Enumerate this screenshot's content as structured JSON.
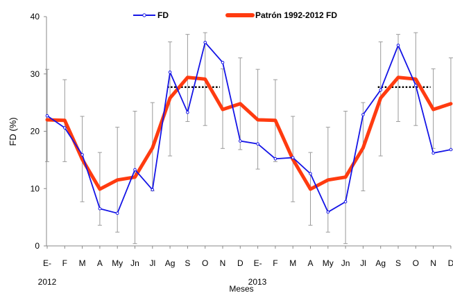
{
  "chart_data": {
    "type": "line",
    "title": "",
    "ylabel": "FD (%)",
    "xlabel": "Meses",
    "ylim": [
      0,
      40
    ],
    "yticks": [
      0,
      10,
      20,
      30,
      40
    ],
    "categories": [
      "E-",
      "F",
      "M",
      "A",
      "My",
      "Jn",
      "Jl",
      "Ag",
      "S",
      "O",
      "N",
      "D",
      "E-",
      "F",
      "M",
      "A",
      "My",
      "Jn",
      "Jl",
      "Ag",
      "S",
      "O",
      "N",
      "D"
    ],
    "year_labels": [
      "2012",
      "2013"
    ],
    "legend_placement": "top",
    "grid": false,
    "series": [
      {
        "name": "FD",
        "color": "#1414e6",
        "values": [
          22.7,
          20.6,
          15.9,
          6.5,
          5.7,
          13.3,
          9.8,
          30.3,
          23.3,
          35.5,
          32.0,
          18.3,
          17.8,
          15.2,
          15.4,
          12.6,
          5.9,
          7.7,
          22.9,
          27.2,
          35.0,
          28.0,
          16.2,
          16.8
        ]
      },
      {
        "name": "Patrón 1992-2012 FD",
        "color": "#ff3b10",
        "values": [
          22.0,
          21.9,
          15.1,
          9.9,
          11.5,
          12.0,
          17.1,
          25.8,
          29.4,
          29.1,
          23.8,
          24.8,
          22.0,
          21.9,
          15.1,
          9.9,
          11.5,
          12.0,
          17.1,
          25.8,
          29.4,
          29.1,
          23.8,
          24.8
        ],
        "error_low": [
          14.7,
          14.7,
          7.7,
          3.6,
          2.4,
          0.4,
          9.6,
          15.7,
          21.7,
          21.0,
          17.0,
          16.8,
          13.4,
          14.7,
          7.7,
          3.6,
          2.4,
          0.4,
          9.6,
          15.7,
          21.7,
          21.0,
          17.0,
          16.8
        ],
        "error_high": [
          30.8,
          29.0,
          22.6,
          16.3,
          20.7,
          23.5,
          25.0,
          35.6,
          36.9,
          37.2,
          30.9,
          32.8,
          30.8,
          29.0,
          22.6,
          16.3,
          20.7,
          23.5,
          25.0,
          35.6,
          36.9,
          37.2,
          30.9,
          32.8
        ]
      }
    ],
    "reference_lines": [
      {
        "from": "Ag",
        "to": "N",
        "occurrence": 1,
        "value": 27.7
      },
      {
        "from": "Ag",
        "to": "N",
        "occurrence": 2,
        "value": 27.7
      }
    ]
  }
}
